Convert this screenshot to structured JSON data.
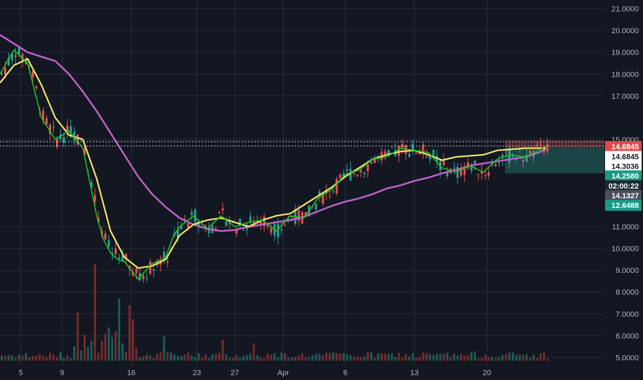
{
  "colors": {
    "background": "#131722",
    "grid": "#2a2e39",
    "up_candle": "#26a69a",
    "down_candle": "#ef5350",
    "ma_fast": "#21c021",
    "ma_mid": "#f5e66a",
    "ma_slow": "#c261c9",
    "vol_up": "#1b5e56",
    "vol_down": "#7a2a2a",
    "tag_red": "#e04a4a",
    "tag_white": "#ffffff",
    "tag_teal": "#1a9a86",
    "tag_dark": "#1b2a33",
    "tag_grey": "#4a4f5c",
    "long_profit_zone": "#1d4a4a",
    "long_stop_zone": "#5a2a30"
  },
  "chart_data": {
    "type": "line",
    "title": "",
    "xlabel": "",
    "ylabel": "",
    "ylim": [
      4.6,
      21.4
    ],
    "grid": true,
    "x_ticks": [
      "5",
      "9",
      "16",
      "23",
      "27",
      "Apr",
      "6",
      "13",
      "20"
    ],
    "y_ticks": [
      "21.0000",
      "20.0000",
      "19.0000",
      "18.0000",
      "17.0000",
      "15.0000",
      "11.0000",
      "10.0000",
      "9.0000",
      "8.0000",
      "7.0000",
      "6.0000",
      "5.0000"
    ],
    "series": [
      {
        "color": "ma_slow",
        "x": [
          0,
          4,
          8,
          12,
          16,
          20,
          24,
          28,
          32,
          36,
          40,
          44,
          48,
          52,
          56,
          60,
          64,
          68,
          72,
          76,
          80,
          84,
          88,
          92,
          96,
          100,
          104,
          108,
          112,
          116,
          120,
          124,
          128,
          132,
          136,
          140,
          144,
          148,
          152,
          156,
          158
        ],
        "values": [
          19.8,
          19.4,
          19.0,
          18.8,
          18.6,
          18.0,
          17.2,
          16.3,
          15.3,
          14.3,
          13.3,
          12.5,
          11.9,
          11.4,
          11.1,
          10.9,
          10.8,
          10.85,
          11.0,
          11.1,
          11.2,
          11.3,
          11.45,
          11.7,
          11.95,
          12.15,
          12.3,
          12.5,
          12.75,
          12.9,
          13.1,
          13.25,
          13.45,
          13.6,
          13.8,
          13.9,
          14.0,
          14.1,
          14.2,
          14.4,
          14.55
        ]
      },
      {
        "color": "ma_mid",
        "x": [
          0,
          4,
          8,
          12,
          16,
          20,
          24,
          28,
          32,
          36,
          40,
          44,
          48,
          52,
          56,
          60,
          64,
          68,
          72,
          76,
          80,
          84,
          88,
          92,
          96,
          100,
          104,
          108,
          112,
          116,
          120,
          124,
          128,
          132,
          136,
          140,
          144,
          148,
          152,
          156,
          158
        ],
        "values": [
          17.6,
          18.4,
          18.7,
          17.5,
          16.0,
          15.2,
          15.0,
          13.2,
          10.8,
          9.6,
          9.1,
          9.2,
          9.5,
          10.6,
          11.1,
          11.3,
          11.4,
          11.2,
          11.0,
          11.3,
          11.5,
          11.6,
          12.0,
          12.4,
          12.8,
          13.3,
          13.7,
          14.1,
          14.3,
          14.45,
          14.5,
          14.3,
          14.05,
          14.2,
          14.25,
          14.3,
          14.5,
          14.55,
          14.6,
          14.6,
          14.6
        ]
      },
      {
        "color": "ma_fast",
        "x": [
          0,
          4,
          8,
          12,
          16,
          20,
          24,
          28,
          30,
          32,
          34,
          36,
          40,
          44,
          48,
          50,
          52,
          56,
          60,
          64,
          68,
          72,
          76,
          80,
          84,
          88,
          92,
          96,
          100,
          104,
          108,
          112,
          116,
          120,
          124,
          128,
          132,
          136,
          140,
          144,
          148,
          152,
          156,
          158
        ],
        "values": [
          18.0,
          19.1,
          18.5,
          16.0,
          15.0,
          15.4,
          14.6,
          11.5,
          10.4,
          9.8,
          9.5,
          9.4,
          8.6,
          9.3,
          9.6,
          10.5,
          11.0,
          11.5,
          10.9,
          11.5,
          11.0,
          11.2,
          11.3,
          10.8,
          11.5,
          11.4,
          12.3,
          12.7,
          13.4,
          13.6,
          14.1,
          14.2,
          14.6,
          14.5,
          14.4,
          13.7,
          13.5,
          13.8,
          13.5,
          14.1,
          14.3,
          14.2,
          14.5,
          14.7
        ]
      }
    ],
    "price_lines": [
      {
        "value": 14.9,
        "color": "#d1d4dc"
      },
      {
        "value": 14.7,
        "color": "#d1d4dc"
      }
    ],
    "price_tags": [
      {
        "label": "14.6845",
        "value": 14.68,
        "style": "red"
      },
      {
        "label": "14.6845",
        "value": 14.22,
        "style": "white"
      },
      {
        "label": "14.3036",
        "value": 13.77,
        "style": "white_plain"
      },
      {
        "label": "14.2580",
        "value": 13.33,
        "style": "teal"
      },
      {
        "label": "02:00:22",
        "value": 12.88,
        "style": "dark"
      },
      {
        "label": "14.1327",
        "value": 12.43,
        "style": "grey"
      },
      {
        "label": "12.6488",
        "value": 11.98,
        "style": "teal"
      }
    ]
  }
}
